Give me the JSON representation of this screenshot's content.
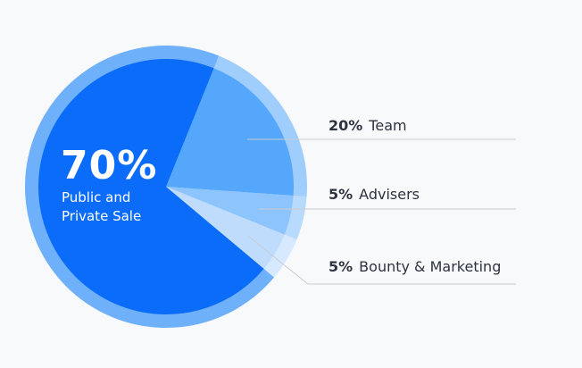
{
  "chart_data": {
    "type": "pie",
    "slices": [
      {
        "value": 70,
        "pct_label": "70%",
        "label": "Public and Private Sale",
        "color": "#0b6cf9"
      },
      {
        "value": 20,
        "pct_label": "20%",
        "label": "Team",
        "color": "#55a7fb"
      },
      {
        "value": 5,
        "pct_label": "5%",
        "label": "Advisers",
        "color": "#8ec4fc"
      },
      {
        "value": 5,
        "pct_label": "5%",
        "label": "Bounty & Marketing",
        "color": "#bfdcfd"
      }
    ],
    "main_label": {
      "pct": "70%",
      "text": "Public and Private Sale"
    },
    "callouts": [
      {
        "pct": "20%",
        "label": "Team"
      },
      {
        "pct": "5%",
        "label": "Advisers"
      },
      {
        "pct": "5%",
        "label": "Bounty & Marketing"
      }
    ]
  }
}
